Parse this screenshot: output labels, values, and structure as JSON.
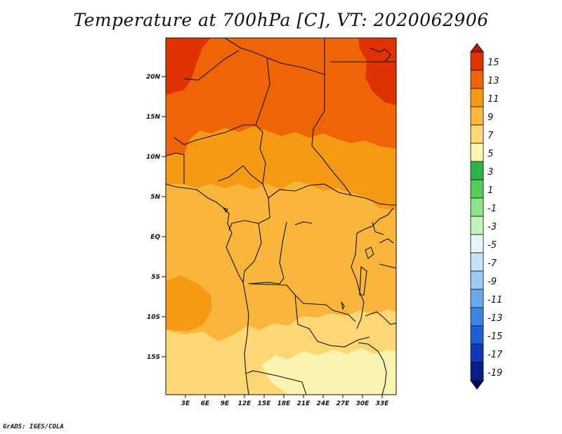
{
  "title": "Temperature at 700hPa [C], VT: 2020062906",
  "credit": "GrADS: IGES/COLA",
  "map": {
    "lat_labels": [
      "20N",
      "15N",
      "10N",
      "5N",
      "EQ",
      "5S",
      "10S",
      "15S"
    ],
    "lon_labels": [
      "3E",
      "6E",
      "9E",
      "12E",
      "15E",
      "18E",
      "21E",
      "24E",
      "27E",
      "30E",
      "33E"
    ]
  },
  "colorbar": {
    "labels": [
      "15",
      "13",
      "11",
      "9",
      "7",
      "5",
      "3",
      "1",
      "-1",
      "-3",
      "-5",
      "-7",
      "-9",
      "-11",
      "-13",
      "-15",
      "-17",
      "-19"
    ],
    "colors": [
      "#b81400",
      "#e03200",
      "#f06408",
      "#f69a16",
      "#f9b63a",
      "#fcd774",
      "#fbf4b0",
      "#2eb34a",
      "#52cd5a",
      "#8ee488",
      "#c3f2bc",
      "#e6f5f8",
      "#c4e3f8",
      "#9ccaf2",
      "#6aaaea",
      "#3c86e0",
      "#1e5ed8",
      "#1038b8",
      "#0a1e8a",
      "#00065a"
    ]
  },
  "colors": {
    "outline": "#111111",
    "background": "#ffffff"
  }
}
